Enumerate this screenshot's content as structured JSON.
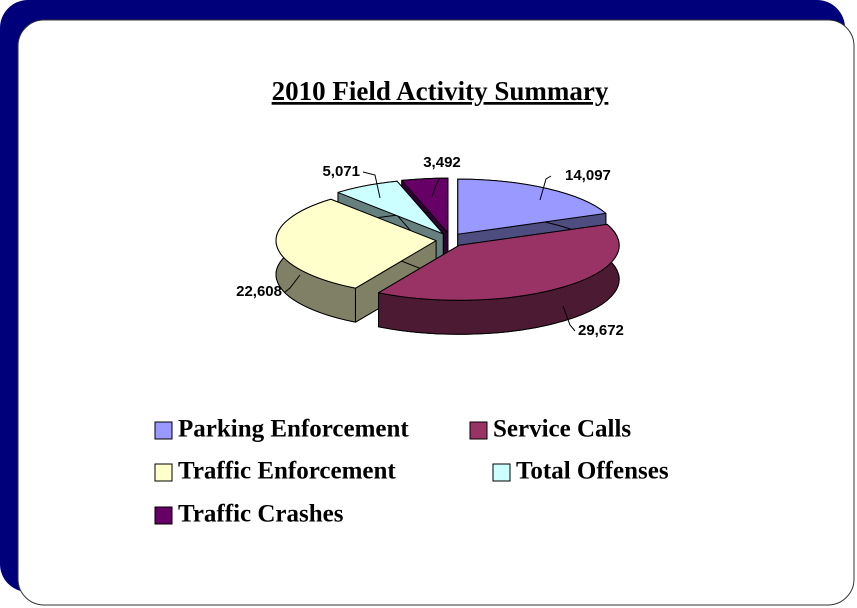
{
  "chart_data": {
    "type": "pie3d",
    "title": "2010 Field Activity Summary",
    "categories": [
      "Parking Enforcement",
      "Service Calls",
      "Traffic Enforcement",
      "Total Offenses",
      "Traffic Crashes"
    ],
    "values": [
      14097,
      29672,
      22608,
      5071,
      3492
    ],
    "value_labels": [
      "14,097",
      "29,672",
      "22,608",
      "5,071",
      "3,492"
    ],
    "colors": [
      "#9999ff",
      "#993366",
      "#ffffcc",
      "#ccffff",
      "#660066"
    ],
    "legend": "bottom"
  }
}
